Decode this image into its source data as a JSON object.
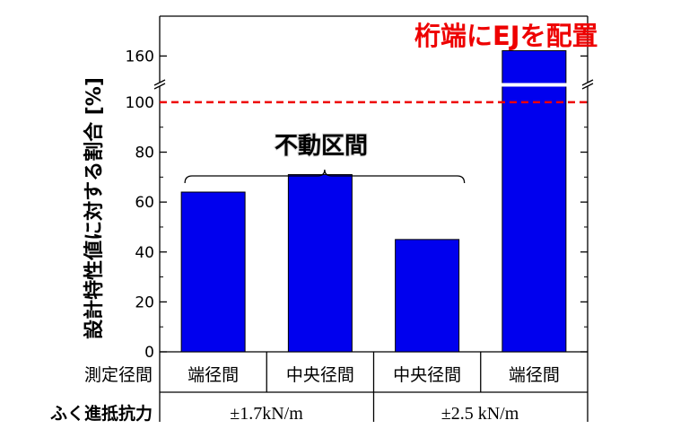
{
  "chart_data": {
    "type": "bar",
    "ylabel": "設計特性値に対する割合 [%]",
    "ylim": [
      0,
      175
    ],
    "axis_break": {
      "from": 105,
      "to": 150
    },
    "yticks": [
      0,
      20,
      40,
      60,
      80,
      100,
      160
    ],
    "grid": false,
    "bar_color": "#0000ee",
    "categories": [
      "端径間",
      "中央径間",
      "中央径間",
      "端径間"
    ],
    "values": [
      64,
      71,
      45,
      162
    ],
    "reference_line": {
      "value": 100,
      "color": "#ee0000",
      "style": "dashed"
    },
    "annotations": {
      "fixed_span": "不動区間",
      "ej_note": "桁端にEJを配置"
    },
    "table": {
      "row1_header": "測定径間",
      "row2_header": "ふく進抵抗力",
      "groups": [
        "±1.7kN/m",
        "±2.5 kN/m"
      ]
    }
  }
}
